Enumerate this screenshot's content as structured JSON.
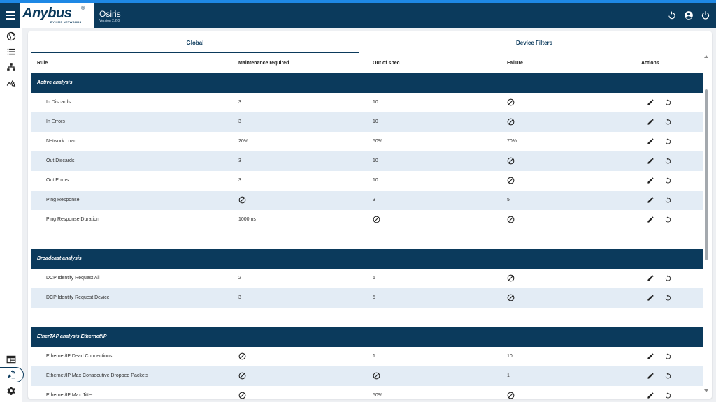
{
  "header": {
    "logo_text": "Anybus",
    "logo_reg": "®",
    "logo_sub": "BY HMS NETWORKS",
    "title": "Osiris",
    "version": "Version 2.2.0",
    "icons": [
      "restart-icon",
      "account-icon",
      "power-icon"
    ]
  },
  "nav": {
    "items": [
      "globe-icon",
      "list-icon",
      "topology-icon",
      "analytics-icon",
      "dashboard-icon",
      "rules-icon",
      "settings-icon"
    ],
    "active": "rules-icon"
  },
  "tabs": [
    {
      "label": "Global",
      "active": true
    },
    {
      "label": "Device Filters",
      "active": false
    }
  ],
  "columns": {
    "rule": "Rule",
    "maintenance": "Maintenance required",
    "out_of_spec": "Out of spec",
    "failure": "Failure",
    "actions": "Actions"
  },
  "sections": [
    {
      "title": "Active analysis",
      "rows": [
        {
          "rule": "In Discards",
          "maintenance": "3",
          "out_of_spec": "10",
          "failure": "⊘"
        },
        {
          "rule": "In Errors",
          "maintenance": "3",
          "out_of_spec": "10",
          "failure": "⊘"
        },
        {
          "rule": "Network Load",
          "maintenance": "20%",
          "out_of_spec": "50%",
          "failure": "70%"
        },
        {
          "rule": "Out Discards",
          "maintenance": "3",
          "out_of_spec": "10",
          "failure": "⊘"
        },
        {
          "rule": "Out Errors",
          "maintenance": "3",
          "out_of_spec": "10",
          "failure": "⊘"
        },
        {
          "rule": "Ping Response",
          "maintenance": "⊘",
          "out_of_spec": "3",
          "failure": "5"
        },
        {
          "rule": "Ping Response Duration",
          "maintenance": "1000ms",
          "out_of_spec": "⊘",
          "failure": "⊘"
        }
      ]
    },
    {
      "title": "Broadcast analysis",
      "rows": [
        {
          "rule": "DCP Identify Request All",
          "maintenance": "2",
          "out_of_spec": "5",
          "failure": "⊘"
        },
        {
          "rule": "DCP Identify Request Device",
          "maintenance": "3",
          "out_of_spec": "5",
          "failure": "⊘"
        }
      ]
    },
    {
      "title": "EtherTAP analysis Ethernet/IP",
      "rows": [
        {
          "rule": "Ethernet/IP Dead Connections",
          "maintenance": "⊘",
          "out_of_spec": "1",
          "failure": "10"
        },
        {
          "rule": "Ethernet/IP Max Consecutive Dropped Packets",
          "maintenance": "⊘",
          "out_of_spec": "⊘",
          "failure": "1"
        },
        {
          "rule": "Ethernet/IP Max Jitter",
          "maintenance": "⊘",
          "out_of_spec": "50%",
          "failure": "⊘"
        }
      ]
    }
  ],
  "row_actions": [
    "edit-icon",
    "reset-icon"
  ],
  "colors": {
    "primary": "#0b3a5c",
    "accent": "#1e88e5",
    "row_alt": "#e3ecf5"
  }
}
